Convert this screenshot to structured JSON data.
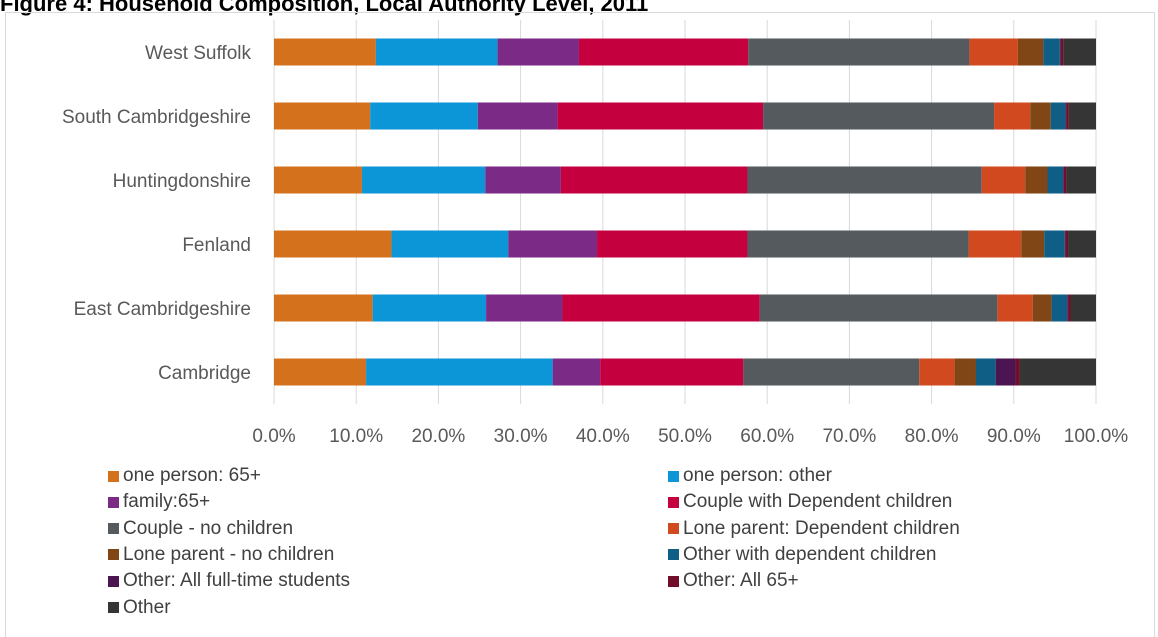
{
  "title": "Figure 4: Household Composition, Local Authority Level, 2011",
  "chart_data": {
    "type": "bar",
    "orientation": "horizontal",
    "stacked": "percent",
    "categories": [
      "West Suffolk",
      "South Cambridgeshire",
      "Huntingdonshire",
      "Fenland",
      "East Cambridgeshire",
      "Cambridge"
    ],
    "xlim": [
      0,
      100
    ],
    "xticks": [
      "0.0%",
      "10.0%",
      "20.0%",
      "30.0%",
      "40.0%",
      "50.0%",
      "60.0%",
      "70.0%",
      "80.0%",
      "90.0%",
      "100.0%"
    ],
    "grid": true,
    "legend_position": "bottom",
    "series": [
      {
        "name": "one person: 65+",
        "color": "#d4711c",
        "values": [
          12.4,
          11.7,
          10.7,
          14.3,
          12.0,
          11.2
        ]
      },
      {
        "name": "one person: other",
        "color": "#0c96d8",
        "values": [
          14.8,
          13.1,
          15.0,
          14.2,
          13.8,
          22.7
        ]
      },
      {
        "name": "family:65+",
        "color": "#7b2a86",
        "values": [
          9.9,
          9.7,
          9.2,
          10.8,
          9.3,
          5.8
        ]
      },
      {
        "name": "Couple with Dependent children",
        "color": "#c4003f",
        "values": [
          20.6,
          25.0,
          22.7,
          18.3,
          24.0,
          17.4
        ]
      },
      {
        "name": "Couple - no children",
        "color": "#555a5e",
        "values": [
          26.9,
          28.1,
          28.5,
          26.9,
          28.9,
          21.4
        ]
      },
      {
        "name": "Lone parent: Dependent children",
        "color": "#d14a1f",
        "values": [
          5.9,
          4.4,
          5.3,
          6.4,
          4.3,
          4.3
        ]
      },
      {
        "name": "Lone parent - no children",
        "color": "#804616",
        "values": [
          3.1,
          2.5,
          2.7,
          2.8,
          2.3,
          2.6
        ]
      },
      {
        "name": "Other with dependent children",
        "color": "#0e5e85",
        "values": [
          2.0,
          1.8,
          1.9,
          2.5,
          1.9,
          2.4
        ]
      },
      {
        "name": "Other: All full-time students",
        "color": "#4b1552",
        "values": [
          0.1,
          0.1,
          0.1,
          0.1,
          0.1,
          2.4
        ]
      },
      {
        "name": "Other: All 65+",
        "color": "#730e2a",
        "values": [
          0.3,
          0.3,
          0.3,
          0.3,
          0.3,
          0.5
        ]
      },
      {
        "name": "Other",
        "color": "#353535",
        "values": [
          4.0,
          3.3,
          3.6,
          3.4,
          3.1,
          9.3
        ]
      }
    ]
  }
}
